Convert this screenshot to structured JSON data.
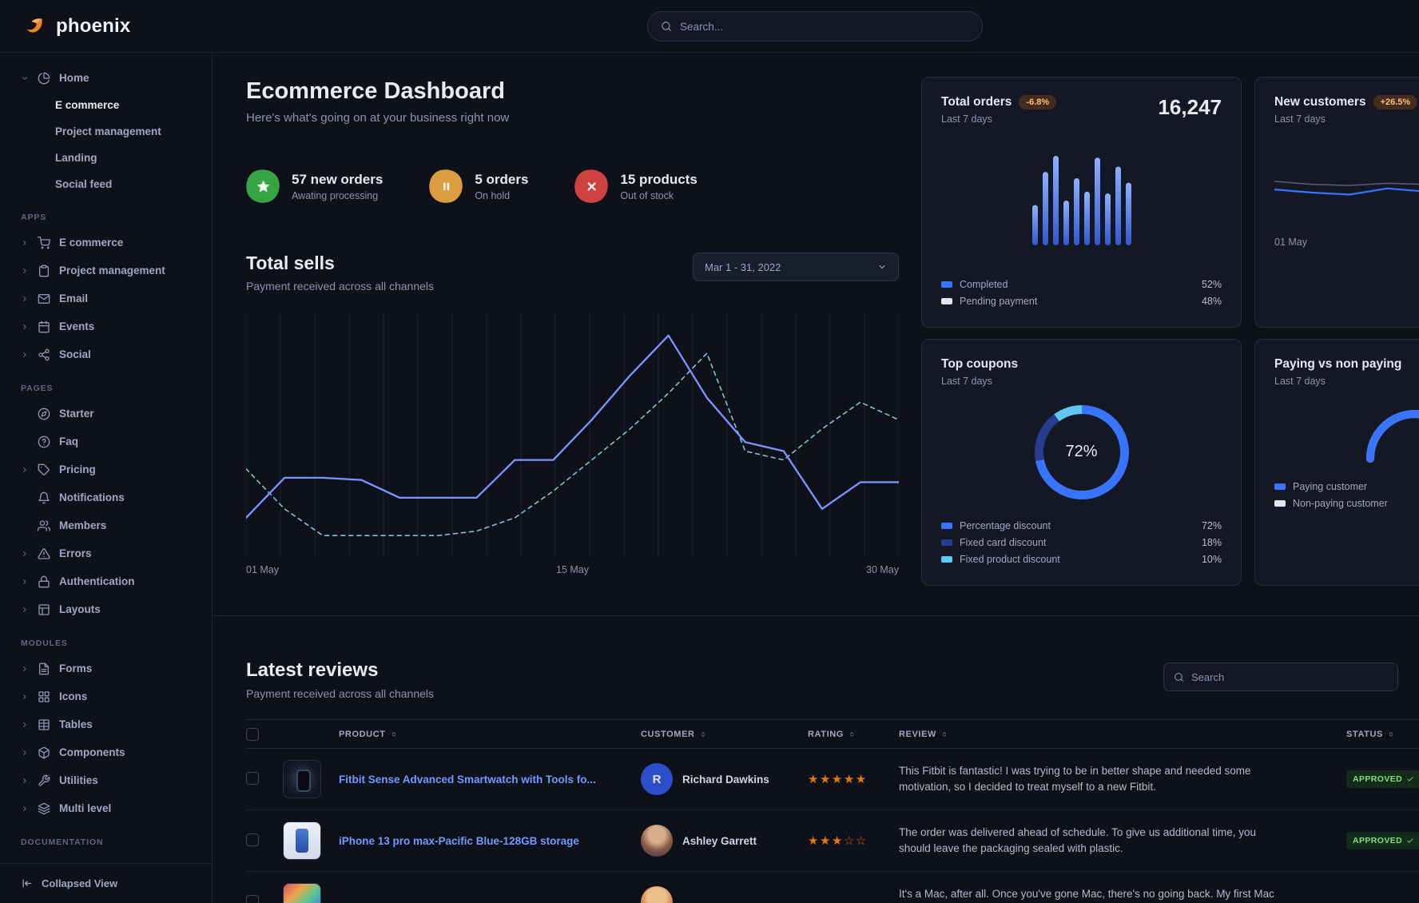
{
  "navbar": {
    "brand": "phoenix",
    "search_placeholder": "Search..."
  },
  "sidebar": {
    "home": {
      "label": "Home",
      "icon": "pie-chart",
      "children": [
        {
          "label": "E commerce",
          "active": true
        },
        {
          "label": "Project management",
          "active": false
        },
        {
          "label": "Landing",
          "active": false
        },
        {
          "label": "Social feed",
          "active": false
        }
      ]
    },
    "sections": [
      {
        "title": "APPS",
        "items": [
          {
            "label": "E commerce",
            "icon": "cart",
            "expandable": true
          },
          {
            "label": "Project management",
            "icon": "clipboard",
            "expandable": true
          },
          {
            "label": "Email",
            "icon": "mail",
            "expandable": true
          },
          {
            "label": "Events",
            "icon": "calendar",
            "expandable": true
          },
          {
            "label": "Social",
            "icon": "share",
            "expandable": true
          }
        ]
      },
      {
        "title": "PAGES",
        "items": [
          {
            "label": "Starter",
            "icon": "compass",
            "expandable": false
          },
          {
            "label": "Faq",
            "icon": "help",
            "expandable": false
          },
          {
            "label": "Pricing",
            "icon": "tag",
            "expandable": true
          },
          {
            "label": "Notifications",
            "icon": "bell",
            "expandable": false
          },
          {
            "label": "Members",
            "icon": "users",
            "expandable": false
          },
          {
            "label": "Errors",
            "icon": "alert",
            "expandable": true
          },
          {
            "label": "Authentication",
            "icon": "lock",
            "expandable": true
          },
          {
            "label": "Layouts",
            "icon": "layout",
            "expandable": true
          }
        ]
      },
      {
        "title": "MODULES",
        "items": [
          {
            "label": "Forms",
            "icon": "file",
            "expandable": true
          },
          {
            "label": "Icons",
            "icon": "grid",
            "expandable": true
          },
          {
            "label": "Tables",
            "icon": "table",
            "expandable": true
          },
          {
            "label": "Components",
            "icon": "package",
            "expandable": true
          },
          {
            "label": "Utilities",
            "icon": "tool",
            "expandable": true
          },
          {
            "label": "Multi level",
            "icon": "layers",
            "expandable": true
          }
        ]
      },
      {
        "title": "DOCUMENTATION",
        "items": []
      }
    ],
    "footer": {
      "label": "Collapsed View",
      "icon": "collapse"
    }
  },
  "header": {
    "title": "Ecommerce Dashboard",
    "subtitle": "Here's what's going on at your business right now"
  },
  "stats": [
    {
      "value": "57 new orders",
      "caption": "Awating processing",
      "icon": "star",
      "color": "#36a345"
    },
    {
      "value": "5 orders",
      "caption": "On hold",
      "icon": "pause",
      "color": "#dd9c3f"
    },
    {
      "value": "15 products",
      "caption": "Out of stock",
      "icon": "x-mark",
      "color": "#ce4242"
    }
  ],
  "total_sells": {
    "title": "Total sells",
    "subtitle": "Payment received across all channels",
    "date_range": "Mar 1 - 31, 2022"
  },
  "cards": {
    "total_orders": {
      "title": "Total orders",
      "badge": "-6.8%",
      "period": "Last 7 days",
      "value": "16,247",
      "legend": [
        {
          "label": "Completed",
          "value": "52%",
          "color": "#3874ff"
        },
        {
          "label": "Pending payment",
          "value": "48%",
          "color": "#e3e6ed"
        }
      ]
    },
    "new_customers": {
      "title": "New customers",
      "badge": "+26.5%",
      "period": "Last 7 days",
      "x_label": "01 May"
    },
    "top_coupons": {
      "title": "Top coupons",
      "period": "Last 7 days",
      "center_value": "72%",
      "legend": [
        {
          "label": "Percentage discount",
          "value": "72%",
          "color": "#3874ff"
        },
        {
          "label": "Fixed card discount",
          "value": "18%",
          "color": "#243d8f"
        },
        {
          "label": "Fixed product discount",
          "value": "10%",
          "color": "#5fc7f0"
        }
      ]
    },
    "paying": {
      "title": "Paying vs non paying",
      "period": "Last 7 days",
      "legend": [
        {
          "label": "Paying customer",
          "color": "#3874ff"
        },
        {
          "label": "Non-paying customer",
          "color": "#e3e6ed"
        }
      ]
    }
  },
  "reviews": {
    "title": "Latest reviews",
    "subtitle": "Payment received across all channels",
    "search_placeholder": "Search",
    "columns": [
      "PRODUCT",
      "CUSTOMER",
      "RATING",
      "REVIEW",
      "STATUS"
    ],
    "rows": [
      {
        "product": "Fitbit Sense Advanced Smartwatch with Tools fo...",
        "thumb": "thumb-fitbit",
        "customer": "Richard Dawkins",
        "avatar_class": "av-blue",
        "avatar_text": "R",
        "rating": 5,
        "review": "This Fitbit is fantastic! I was trying to be in better shape and needed some motivation, so I decided to treat myself to a new Fitbit.",
        "status": "APPROVED"
      },
      {
        "product": "iPhone 13 pro max-Pacific Blue-128GB storage",
        "thumb": "thumb-iphone",
        "customer": "Ashley Garrett",
        "avatar_class": "av-photo1",
        "avatar_text": "",
        "rating": 3,
        "review": "The order was delivered ahead of schedule. To give us additional time, you should leave the packaging sealed with plastic.",
        "status": "APPROVED"
      },
      {
        "product": "",
        "thumb": "thumb-macbook",
        "customer": "",
        "avatar_class": "av-photo2",
        "avatar_text": "",
        "rating": 0,
        "review": "It's a Mac, after all. Once you've gone Mac, there's no going back. My first Mac lasted",
        "status": ""
      }
    ]
  },
  "chart_data": [
    {
      "id": "total-sells",
      "type": "line",
      "title": "Total sells",
      "x_ticks": [
        "01 May",
        "15 May",
        "30 May"
      ],
      "ymax": 110,
      "grid": "vertical",
      "series": [
        {
          "name": "current period",
          "style": "solid",
          "color": "#7b96ff",
          "values": [
            18,
            36,
            36,
            35,
            27,
            27,
            27,
            44,
            44,
            62,
            82,
            100,
            72,
            52,
            48,
            22,
            34,
            34
          ]
        },
        {
          "name": "previous period",
          "style": "dashed",
          "color": "#7cc5d6",
          "values": [
            40,
            22,
            10,
            10,
            10,
            10,
            12,
            18,
            30,
            44,
            58,
            74,
            92,
            48,
            44,
            58,
            70,
            62
          ]
        }
      ]
    },
    {
      "id": "total-orders-bars",
      "type": "bar",
      "values": [
        45,
        82,
        100,
        50,
        75,
        60,
        98,
        58,
        88,
        70
      ],
      "ymax": 100
    },
    {
      "id": "new-customers-line",
      "type": "line",
      "x_label": "01 May",
      "series": [
        {
          "name": "previous",
          "color": "#565f78",
          "width": 1.5,
          "values": [
            58,
            52,
            50,
            54,
            52,
            56,
            52,
            55
          ]
        },
        {
          "name": "current",
          "color": "#3874ff",
          "width": 2.2,
          "values": [
            42,
            36,
            32,
            44,
            38,
            66,
            40,
            54
          ]
        }
      ]
    },
    {
      "id": "top-coupons-donut",
      "type": "donut",
      "center_label": "72%",
      "segments": [
        {
          "label": "Percentage discount",
          "value": 72,
          "color": "#3874ff"
        },
        {
          "label": "Fixed card discount",
          "value": 18,
          "color": "#243d8f"
        },
        {
          "label": "Fixed product discount",
          "value": 10,
          "color": "#5fc7f0"
        }
      ]
    },
    {
      "id": "paying-gauge",
      "type": "gauge",
      "value": 65,
      "color": "#3874ff",
      "track_color": "#e3e6ed"
    }
  ]
}
